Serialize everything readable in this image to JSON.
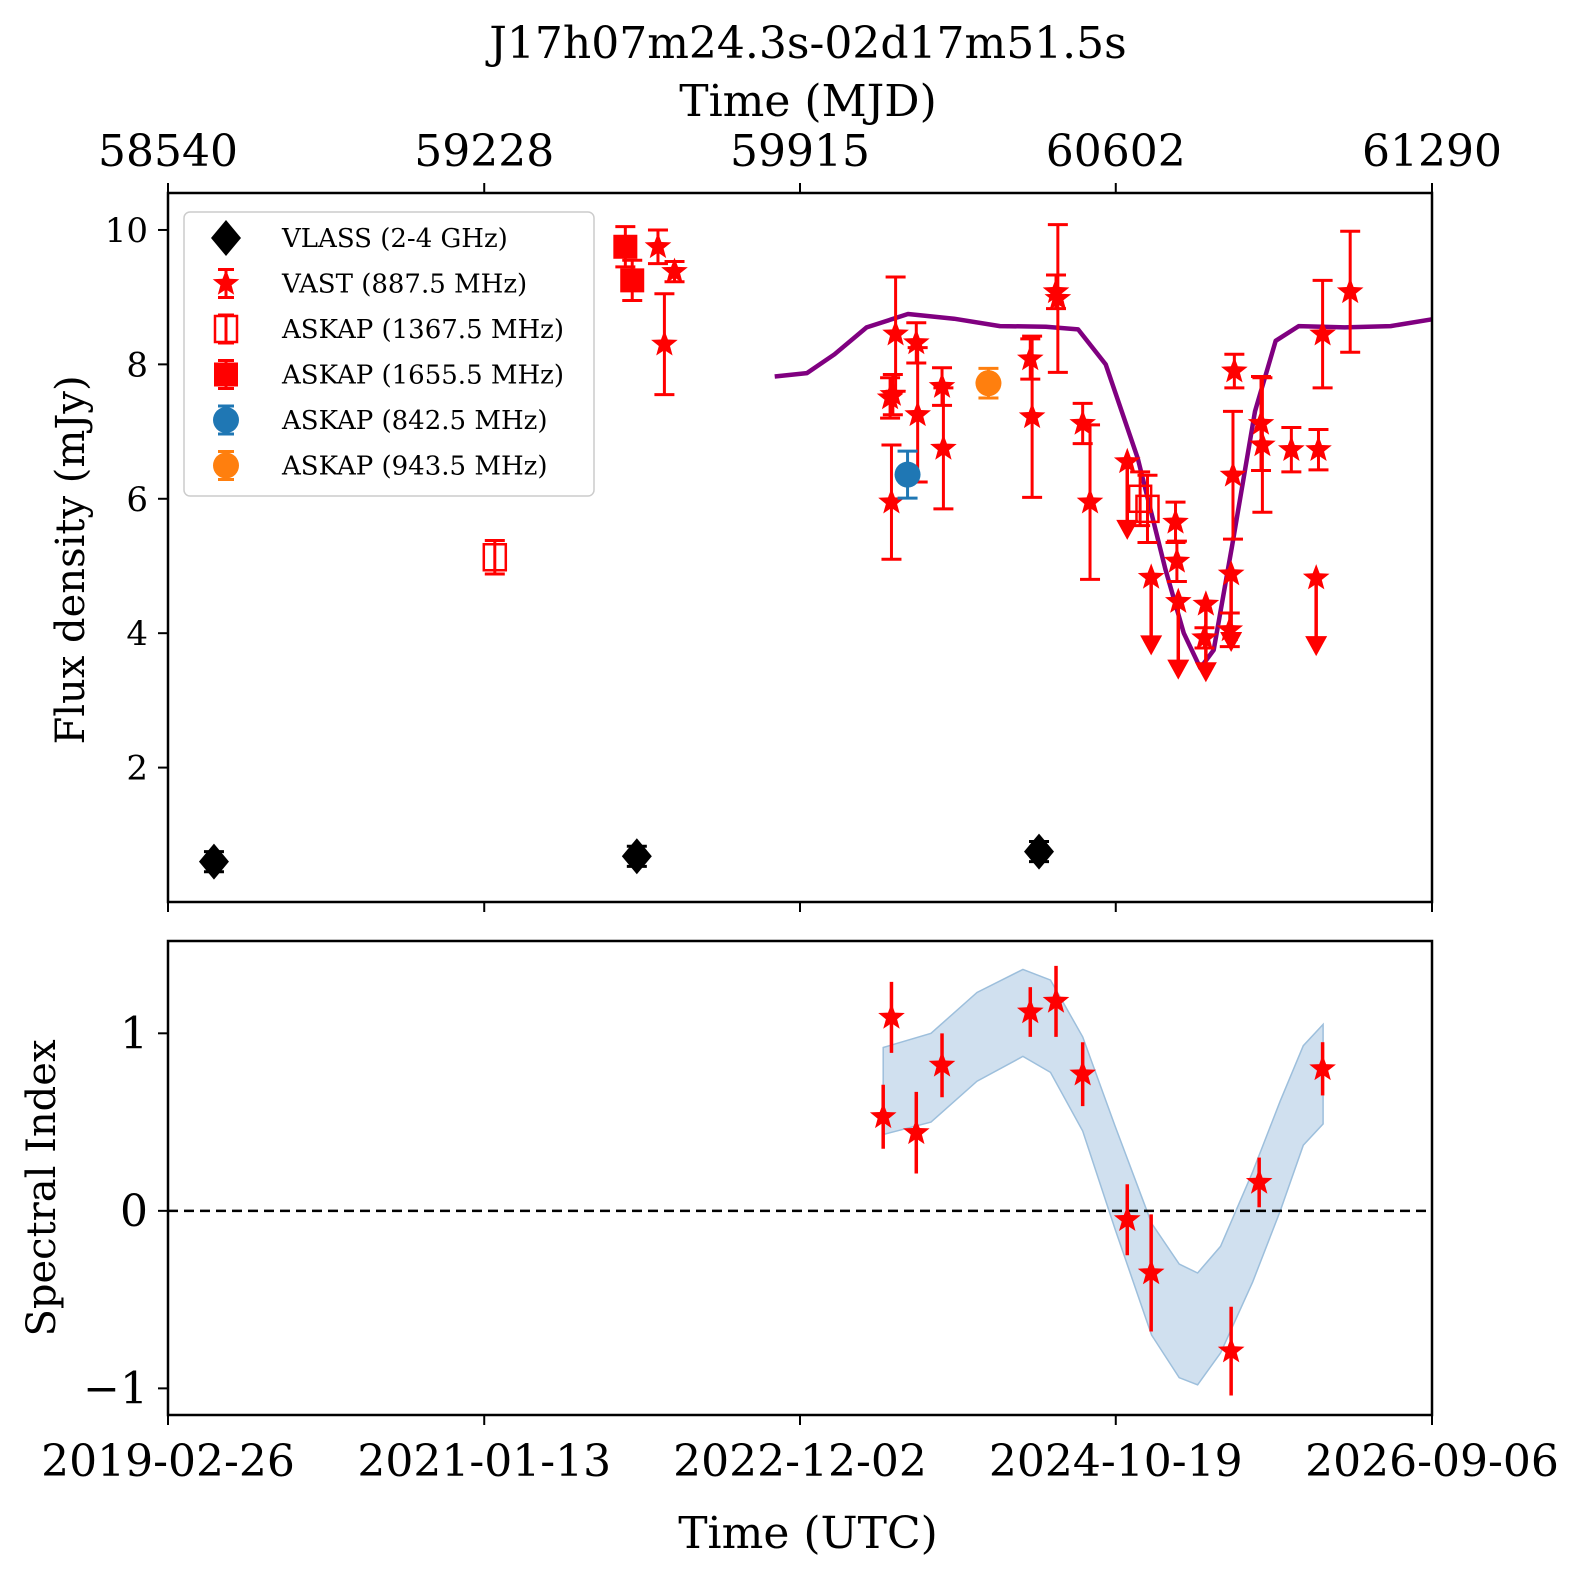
{
  "title": "J17h07m24.3s-02d17m51.5s",
  "top_axis_label": "Time (MJD)",
  "bottom_axis_label": "Time (UTC)",
  "colors": {
    "vlass": "#000000",
    "vast": "#ff0000",
    "askap_1367": "#ff0000",
    "askap_1655": "#ff0000",
    "askap_842": "#1f77b4",
    "askap_943": "#ff7f0e",
    "model": "#800080",
    "band": "#b0cce4"
  },
  "chart_data": [
    {
      "type": "scatter",
      "panel": "top",
      "ylabel": "Flux density (mJy)",
      "xlim": [
        58540,
        61290
      ],
      "ylim": [
        0,
        10.55
      ],
      "x_units": "MJD",
      "top_ticks_mjd": [
        "58540",
        "59228",
        "59915",
        "60602",
        "61290"
      ],
      "y_ticks": [
        "2",
        "4",
        "6",
        "8",
        "10"
      ],
      "grid": false,
      "legend_position": "top-left",
      "legend": [
        {
          "label": "VLASS (2-4 GHz)",
          "marker": "diamond",
          "color": "#000000"
        },
        {
          "label": "VAST (887.5 MHz)",
          "marker": "star",
          "color": "#ff0000"
        },
        {
          "label": "ASKAP (1367.5 MHz)",
          "marker": "open-square",
          "color": "#ff0000"
        },
        {
          "label": "ASKAP (1655.5 MHz)",
          "marker": "square",
          "color": "#ff0000"
        },
        {
          "label": "ASKAP (842.5 MHz)",
          "marker": "circle",
          "color": "#1f77b4"
        },
        {
          "label": "ASKAP (943.5 MHz)",
          "marker": "circle",
          "color": "#ff7f0e"
        }
      ],
      "series": [
        {
          "name": "VLASS (2-4 GHz)",
          "marker": "diamond",
          "color": "#000000",
          "points": [
            [
              58640,
              0.6,
              0.15
            ],
            [
              59560,
              0.68,
              0.15
            ],
            [
              60435,
              0.75,
              0.15
            ]
          ]
        },
        {
          "name": "VAST (887.5 MHz)",
          "marker": "star",
          "color": "#ff0000",
          "points": [
            [
              59606,
              9.75,
              0.25
            ],
            [
              59620,
              8.3,
              0.75
            ],
            [
              59642,
              9.38,
              0.15
            ],
            [
              60111,
              7.5,
              0.3
            ],
            [
              60114,
              5.95,
              0.85
            ],
            [
              60117,
              7.55,
              0.3
            ],
            [
              60123,
              8.45,
              0.85
            ],
            [
              60168,
              8.32,
              0.3
            ],
            [
              60171,
              7.25,
              1.0
            ],
            [
              60224,
              7.67,
              0.28
            ],
            [
              60227,
              6.75,
              0.9
            ],
            [
              60416,
              8.08,
              0.3
            ],
            [
              60420,
              7.22,
              1.2
            ],
            [
              60472,
              9.08,
              0.25
            ],
            [
              60476,
              8.98,
              1.1
            ],
            [
              60530,
              7.12,
              0.3
            ],
            [
              60546,
              5.95,
              1.15
            ],
            [
              60732,
              5.65,
              0.3
            ],
            [
              60735,
              5.07,
              0.3
            ],
            [
              60795,
              3.93,
              0.15
            ],
            [
              60850,
              4.05,
              0.25
            ],
            [
              60857,
              6.35,
              0.95
            ],
            [
              60860,
              7.9,
              0.25
            ],
            [
              60918,
              7.12,
              0.7
            ],
            [
              60921,
              6.8,
              1.0
            ],
            [
              60984,
              6.73,
              0.33
            ],
            [
              61043,
              6.73,
              0.3
            ],
            [
              61052,
              8.45,
              0.8
            ],
            [
              61112,
              9.08,
              0.9
            ]
          ]
        },
        {
          "name": "VAST (887.5 MHz) upper limits",
          "marker": "star-arrow",
          "color": "#ff0000",
          "points": [
            [
              60627,
              6.55
            ],
            [
              60679,
              4.83
            ],
            [
              60738,
              4.47
            ],
            [
              60798,
              4.43
            ],
            [
              60853,
              4.88
            ],
            [
              61038,
              4.82
            ]
          ]
        },
        {
          "name": "ASKAP (1367.5 MHz)",
          "marker": "open-square",
          "color": "#ff0000",
          "points": [
            [
              59251,
              5.13,
              0.25
            ],
            [
              60655,
              6.0,
              0.4
            ],
            [
              60671,
              5.85,
              0.5
            ]
          ]
        },
        {
          "name": "ASKAP (1655.5 MHz)",
          "marker": "square",
          "color": "#ff0000",
          "points": [
            [
              59535,
              9.75,
              0.3
            ],
            [
              59550,
              9.25,
              0.3
            ]
          ]
        },
        {
          "name": "ASKAP (842.5 MHz)",
          "marker": "circle",
          "color": "#1f77b4",
          "points": [
            [
              60149,
              6.36,
              0.35
            ]
          ]
        },
        {
          "name": "ASKAP (943.5 MHz)",
          "marker": "circle",
          "color": "#ff7f0e",
          "points": [
            [
              60325,
              7.72,
              0.22
            ]
          ]
        },
        {
          "name": "model",
          "type": "line",
          "color": "#800080",
          "points": [
            [
              59860,
              7.82
            ],
            [
              59930,
              7.87
            ],
            [
              59990,
              8.15
            ],
            [
              60060,
              8.55
            ],
            [
              60150,
              8.75
            ],
            [
              60250,
              8.68
            ],
            [
              60350,
              8.57
            ],
            [
              60450,
              8.56
            ],
            [
              60520,
              8.52
            ],
            [
              60580,
              8.0
            ],
            [
              60650,
              6.6
            ],
            [
              60710,
              4.95
            ],
            [
              60750,
              4.0
            ],
            [
              60786,
              3.48
            ],
            [
              60815,
              3.75
            ],
            [
              60855,
              5.3
            ],
            [
              60905,
              7.3
            ],
            [
              60950,
              8.35
            ],
            [
              61000,
              8.57
            ],
            [
              61100,
              8.55
            ],
            [
              61200,
              8.57
            ],
            [
              61290,
              8.67
            ]
          ]
        }
      ]
    },
    {
      "type": "scatter",
      "panel": "bottom",
      "ylabel": "Spectral Index",
      "xlim": [
        58540,
        61290
      ],
      "ylim": [
        -1.15,
        1.52
      ],
      "x_ticks_utc": [
        "2019-02-26",
        "2021-01-13",
        "2022-12-02",
        "2024-10-19",
        "2026-09-06"
      ],
      "y_ticks": [
        "−1",
        "0",
        "1"
      ],
      "reference_line": 0,
      "series": [
        {
          "name": "spectral index",
          "marker": "star",
          "color": "#ff0000",
          "points": [
            [
              60096,
              0.53,
              0.18
            ],
            [
              60114,
              1.09,
              0.2
            ],
            [
              60168,
              0.44,
              0.23
            ],
            [
              60224,
              0.82,
              0.18
            ],
            [
              60416,
              1.12,
              0.14
            ],
            [
              60472,
              1.18,
              0.2
            ],
            [
              60530,
              0.77,
              0.18
            ],
            [
              60627,
              -0.05,
              0.2
            ],
            [
              60679,
              -0.35,
              0.33
            ],
            [
              60853,
              -0.79,
              0.25
            ],
            [
              60914,
              0.16,
              0.14
            ],
            [
              61052,
              0.8,
              0.15
            ]
          ]
        },
        {
          "name": "model band",
          "type": "band",
          "color": "#b0cce4",
          "upper": [
            [
              60096,
              0.92
            ],
            [
              60200,
              1.0
            ],
            [
              60300,
              1.23
            ],
            [
              60400,
              1.36
            ],
            [
              60460,
              1.3
            ],
            [
              60530,
              0.98
            ],
            [
              60600,
              0.48
            ],
            [
              60680,
              -0.07
            ],
            [
              60740,
              -0.3
            ],
            [
              60780,
              -0.35
            ],
            [
              60830,
              -0.2
            ],
            [
              60900,
              0.22
            ],
            [
              60960,
              0.62
            ],
            [
              61010,
              0.93
            ],
            [
              61053,
              1.05
            ]
          ],
          "lower": [
            [
              60096,
              0.43
            ],
            [
              60200,
              0.5
            ],
            [
              60300,
              0.73
            ],
            [
              60400,
              0.87
            ],
            [
              60460,
              0.78
            ],
            [
              60530,
              0.45
            ],
            [
              60600,
              -0.1
            ],
            [
              60680,
              -0.7
            ],
            [
              60740,
              -0.94
            ],
            [
              60780,
              -0.98
            ],
            [
              60830,
              -0.8
            ],
            [
              60900,
              -0.4
            ],
            [
              60960,
              0.0
            ],
            [
              61010,
              0.37
            ],
            [
              61053,
              0.49
            ]
          ]
        }
      ]
    }
  ]
}
